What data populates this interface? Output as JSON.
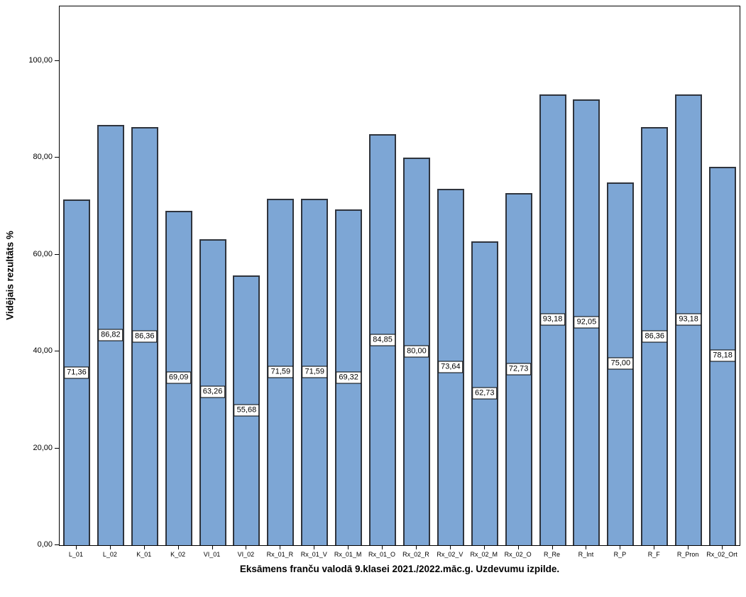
{
  "figure": {
    "background": "#ffffff",
    "frame_border_color": "#000000"
  },
  "chart_data": {
    "type": "bar",
    "title": "",
    "xlabel": "Eksāmens franču valodā 9.klasei 2021./2022.māc.g. Uzdevumu izpilde.",
    "ylabel": "Vidējais rezultāts %",
    "categories": [
      "L_01",
      "L_02",
      "K_01",
      "K_02",
      "VI_01",
      "VI_02",
      "Rx_01_R",
      "Rx_01_V",
      "Rx_01_M",
      "Rx_01_O",
      "Rx_02_R",
      "Rx_02_V",
      "Rx_02_M",
      "Rx_02_O",
      "R_Re",
      "R_Int",
      "R_P",
      "R_F",
      "R_Pron",
      "Rx_02_Ort"
    ],
    "values": [
      71.36,
      86.82,
      86.36,
      69.09,
      63.26,
      55.68,
      71.59,
      71.59,
      69.32,
      84.85,
      80.0,
      73.64,
      62.73,
      72.73,
      93.18,
      92.05,
      75.0,
      86.36,
      93.18,
      78.18
    ],
    "value_labels": [
      "71,36",
      "86,82",
      "86,36",
      "69,09",
      "63,26",
      "55,68",
      "71,59",
      "71,59",
      "69,32",
      "84,85",
      "80,00",
      "73,64",
      "62,73",
      "72,73",
      "93,18",
      "92,05",
      "75,00",
      "86,36",
      "93,18",
      "78,18"
    ],
    "yticks": [
      {
        "value": 0,
        "label": "0,00"
      },
      {
        "value": 20,
        "label": "20,00"
      },
      {
        "value": 40,
        "label": "40,00"
      },
      {
        "value": 60,
        "label": "60,00"
      },
      {
        "value": 80,
        "label": "80,00"
      },
      {
        "value": 100,
        "label": "100,00"
      }
    ],
    "ylim": [
      0,
      111.3
    ],
    "grid": false,
    "legend_position": "none",
    "bar_color": "#7DA6D5",
    "bar_border_color": "#2F343D",
    "value_label_bg": "#FFFFFF",
    "value_label_border": "#000000"
  }
}
